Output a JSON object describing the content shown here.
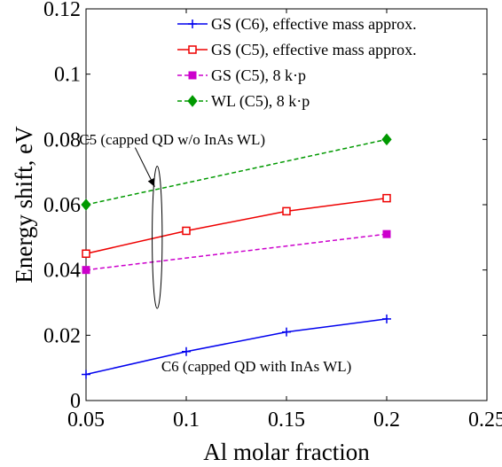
{
  "chart_data": {
    "type": "line",
    "xlabel": "Al molar fraction",
    "ylabel": "Energy shift, eV",
    "xlim": [
      0.05,
      0.25
    ],
    "ylim": [
      0,
      0.12
    ],
    "xticks": [
      "0.05",
      "0.1",
      "0.15",
      "0.2",
      "0.25"
    ],
    "yticks": [
      "0",
      "0.02",
      "0.04",
      "0.06",
      "0.08",
      "0.1",
      "0.12"
    ],
    "xtick_values": [
      0.05,
      0.1,
      0.15,
      0.2,
      0.25
    ],
    "ytick_values": [
      0,
      0.02,
      0.04,
      0.06,
      0.08,
      0.1,
      0.12
    ],
    "grid": false,
    "legend_position": "top-right",
    "series": [
      {
        "name": "GS (C6), effective mass approx.",
        "color": "#0000ee",
        "marker": "plus",
        "dash": "solid",
        "x": [
          0.05,
          0.1,
          0.15,
          0.2
        ],
        "y": [
          0.008,
          0.015,
          0.021,
          0.025
        ]
      },
      {
        "name": "GS (C5), effective mass approx.",
        "color": "#ee0000",
        "marker": "square-open",
        "dash": "solid",
        "x": [
          0.05,
          0.1,
          0.15,
          0.2
        ],
        "y": [
          0.045,
          0.052,
          0.058,
          0.062
        ]
      },
      {
        "name": "GS (C5), 8 k·p",
        "color": "#cc00cc",
        "marker": "square-filled",
        "dash": "dashed",
        "x": [
          0.05,
          0.2
        ],
        "y": [
          0.04,
          0.051
        ]
      },
      {
        "name": "WL (C5), 8 k·p",
        "color": "#009900",
        "marker": "diamond-filled",
        "dash": "dashed",
        "x": [
          0.05,
          0.2
        ],
        "y": [
          0.06,
          0.08
        ]
      }
    ],
    "annotations": [
      {
        "text": "C5 (capped QD w/o InAs WL)",
        "x": 0.093,
        "y": 0.0785
      },
      {
        "text": "C6 (capped QD with InAs WL)",
        "x": 0.135,
        "y": 0.009
      }
    ],
    "ellipse": {
      "cx": 0.0855,
      "cy": 0.05,
      "rx": 0.0025,
      "ry": 0.0218
    },
    "arrow": {
      "x1": 0.0745,
      "y1": 0.0775,
      "x2": 0.0842,
      "y2": 0.0655
    }
  }
}
